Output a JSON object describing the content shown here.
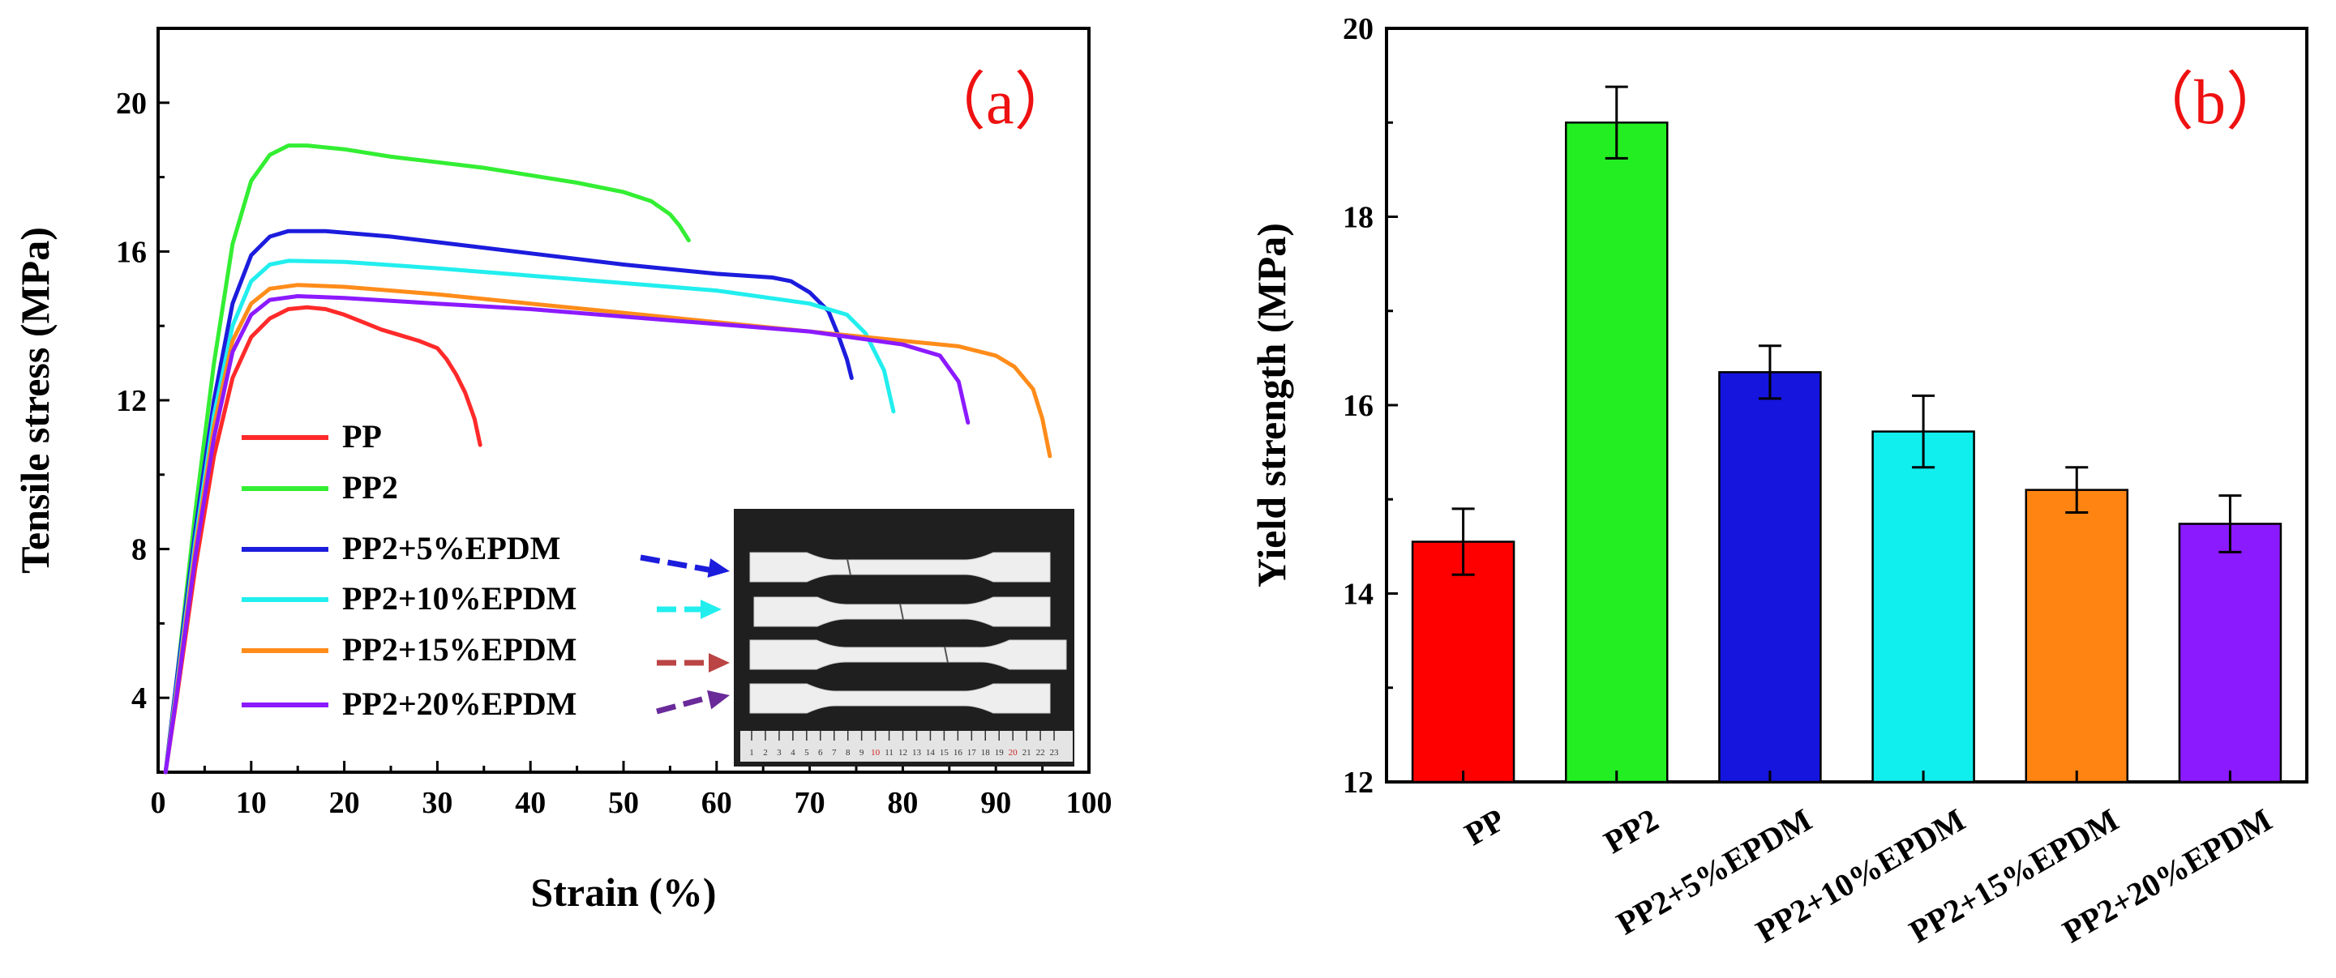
{
  "chart_data": [
    {
      "type": "line",
      "panel_label": "（a）",
      "xlabel": "Strain (%)",
      "ylabel": "Tensile stress (MPa)",
      "xlim": [
        0,
        100
      ],
      "ylim": [
        2,
        22
      ],
      "xticks": [
        0,
        10,
        20,
        30,
        40,
        50,
        60,
        70,
        80,
        90,
        100
      ],
      "yticks": [
        4,
        8,
        12,
        16,
        20
      ],
      "grid": false,
      "legend_position": "bottom-left",
      "series": [
        {
          "name": "PP",
          "color": "#ff2a2a",
          "points": [
            [
              0.8,
              2
            ],
            [
              2,
              4
            ],
            [
              4,
              7.5
            ],
            [
              6,
              10.5
            ],
            [
              8,
              12.6
            ],
            [
              10,
              13.7
            ],
            [
              12,
              14.2
            ],
            [
              14,
              14.45
            ],
            [
              16,
              14.5
            ],
            [
              18,
              14.45
            ],
            [
              20,
              14.3
            ],
            [
              22,
              14.1
            ],
            [
              24,
              13.9
            ],
            [
              26,
              13.75
            ],
            [
              28,
              13.6
            ],
            [
              30,
              13.4
            ],
            [
              31,
              13.1
            ],
            [
              32,
              12.7
            ],
            [
              33,
              12.2
            ],
            [
              34,
              11.5
            ],
            [
              34.6,
              10.8
            ]
          ]
        },
        {
          "name": "PP2",
          "color": "#33ee33",
          "points": [
            [
              0.8,
              2
            ],
            [
              2,
              4.5
            ],
            [
              4,
              9
            ],
            [
              6,
              13
            ],
            [
              8,
              16.2
            ],
            [
              10,
              17.9
            ],
            [
              12,
              18.6
            ],
            [
              14,
              18.85
            ],
            [
              16,
              18.85
            ],
            [
              20,
              18.75
            ],
            [
              25,
              18.55
            ],
            [
              30,
              18.4
            ],
            [
              35,
              18.25
            ],
            [
              40,
              18.05
            ],
            [
              45,
              17.85
            ],
            [
              50,
              17.6
            ],
            [
              53,
              17.35
            ],
            [
              55,
              17.0
            ],
            [
              56,
              16.7
            ],
            [
              57,
              16.3
            ]
          ]
        },
        {
          "name": "PP2+5%EPDM",
          "color": "#1c1cdd",
          "points": [
            [
              0.8,
              2
            ],
            [
              2,
              4.5
            ],
            [
              4,
              8.5
            ],
            [
              6,
              12
            ],
            [
              8,
              14.6
            ],
            [
              10,
              15.9
            ],
            [
              12,
              16.4
            ],
            [
              14,
              16.55
            ],
            [
              18,
              16.55
            ],
            [
              25,
              16.4
            ],
            [
              30,
              16.25
            ],
            [
              40,
              15.95
            ],
            [
              50,
              15.65
            ],
            [
              60,
              15.4
            ],
            [
              66,
              15.3
            ],
            [
              68,
              15.2
            ],
            [
              70,
              14.9
            ],
            [
              72,
              14.4
            ],
            [
              73,
              13.8
            ],
            [
              74,
              13.1
            ],
            [
              74.5,
              12.6
            ]
          ]
        },
        {
          "name": "PP2+10%EPDM",
          "color": "#22eeee",
          "points": [
            [
              0.8,
              2
            ],
            [
              2,
              4.3
            ],
            [
              4,
              8.2
            ],
            [
              6,
              11.6
            ],
            [
              8,
              14.0
            ],
            [
              10,
              15.2
            ],
            [
              12,
              15.65
            ],
            [
              14,
              15.75
            ],
            [
              20,
              15.72
            ],
            [
              30,
              15.55
            ],
            [
              40,
              15.35
            ],
            [
              50,
              15.15
            ],
            [
              60,
              14.95
            ],
            [
              70,
              14.6
            ],
            [
              74,
              14.3
            ],
            [
              76,
              13.8
            ],
            [
              78,
              12.8
            ],
            [
              79,
              11.7
            ]
          ]
        },
        {
          "name": "PP2+15%EPDM",
          "color": "#ff8c1a",
          "points": [
            [
              0.8,
              2
            ],
            [
              2,
              4.2
            ],
            [
              4,
              8
            ],
            [
              6,
              11.3
            ],
            [
              8,
              13.6
            ],
            [
              10,
              14.6
            ],
            [
              12,
              15.0
            ],
            [
              15,
              15.1
            ],
            [
              20,
              15.05
            ],
            [
              30,
              14.85
            ],
            [
              40,
              14.6
            ],
            [
              50,
              14.35
            ],
            [
              60,
              14.1
            ],
            [
              70,
              13.85
            ],
            [
              80,
              13.6
            ],
            [
              86,
              13.45
            ],
            [
              90,
              13.2
            ],
            [
              92,
              12.9
            ],
            [
              94,
              12.3
            ],
            [
              95,
              11.5
            ],
            [
              95.8,
              10.5
            ]
          ]
        },
        {
          "name": "PP2+20%EPDM",
          "color": "#8c1aff",
          "points": [
            [
              0.8,
              2
            ],
            [
              2,
              4.1
            ],
            [
              4,
              7.8
            ],
            [
              6,
              11
            ],
            [
              8,
              13.3
            ],
            [
              10,
              14.3
            ],
            [
              12,
              14.7
            ],
            [
              15,
              14.8
            ],
            [
              20,
              14.75
            ],
            [
              30,
              14.6
            ],
            [
              40,
              14.45
            ],
            [
              50,
              14.25
            ],
            [
              60,
              14.05
            ],
            [
              70,
              13.85
            ],
            [
              80,
              13.5
            ],
            [
              84,
              13.2
            ],
            [
              86,
              12.5
            ],
            [
              87,
              11.4
            ]
          ]
        }
      ],
      "inset": {
        "ruler_labels": [
          "1",
          "2",
          "3",
          "4",
          "5",
          "6",
          "7",
          "8",
          "9",
          "10",
          "11",
          "12",
          "13",
          "14",
          "15",
          "16",
          "17",
          "18",
          "19",
          "20",
          "21",
          "22",
          "23"
        ]
      }
    },
    {
      "type": "bar",
      "panel_label": "（b）",
      "xlabel": "",
      "ylabel": "Yield strength (MPa)",
      "ylim": [
        12,
        20
      ],
      "yticks": [
        12,
        14,
        16,
        18,
        20
      ],
      "grid": false,
      "categories": [
        "PP",
        "PP2",
        "PP2+5%EPDM",
        "PP2+10%EPDM",
        "PP2+15%EPDM",
        "PP2+20%EPDM"
      ],
      "values": [
        14.55,
        19.0,
        16.35,
        15.72,
        15.1,
        14.74
      ],
      "errors": [
        0.35,
        0.38,
        0.28,
        0.38,
        0.24,
        0.3
      ],
      "colors": [
        "#ff0000",
        "#22ee22",
        "#1515dd",
        "#11eeee",
        "#ff8412",
        "#8c1aff"
      ]
    }
  ]
}
